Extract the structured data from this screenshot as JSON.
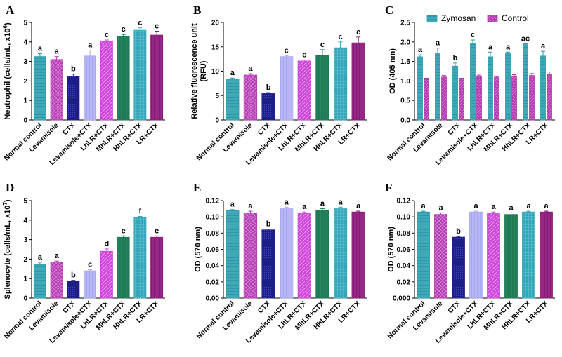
{
  "colors": {
    "normal": "#2a9aab",
    "levamisole": "#b03aae",
    "ctx": "#1d1f86",
    "levctx": "#a8a8f0",
    "lhlr": "#cc44d8",
    "mhlr": "#1f7a55",
    "hhlr": "#33a6b9",
    "lr": "#881a77",
    "zymosan": "#2a9aab",
    "control": "#b03aae"
  },
  "chart_data": [
    {
      "id": "A",
      "type": "bar",
      "letter": "A",
      "categories": [
        "Normal control",
        "Levamisole",
        "CTX",
        "Levamisole+CTX",
        "LhLR+CTX",
        "MhLR+CTX",
        "HhLR+CTX",
        "LR+CTX"
      ],
      "values": [
        3.25,
        3.1,
        2.25,
        3.28,
        4.02,
        4.28,
        4.6,
        4.35
      ],
      "errors": [
        0.15,
        0.15,
        0.1,
        0.3,
        0.08,
        0.1,
        0.12,
        0.2
      ],
      "labels": [
        "a",
        "a",
        "b",
        "a",
        "c",
        "c",
        "c",
        "c"
      ],
      "ylabel_prefix": "Neutrophil (cells/mL, x10",
      "ylabel_exp": "6",
      "ylabel_suffix": ")",
      "ylim": [
        0,
        5
      ],
      "yticks": [
        0,
        1,
        2,
        3,
        4,
        5
      ],
      "yticklabels": [
        "0",
        "1",
        "2",
        "3",
        "4",
        "5"
      ]
    },
    {
      "id": "B",
      "type": "bar",
      "letter": "B",
      "categories": [
        "Normal control",
        "Levamisole",
        "CTX",
        "Levamisole+CTX",
        "LhLR+CTX",
        "MhLR+CTX",
        "HhLR+CTX",
        "LR+CTX"
      ],
      "values": [
        8.3,
        9.2,
        5.4,
        13.0,
        12.1,
        13.2,
        14.8,
        15.8
      ],
      "errors": [
        0.3,
        0.3,
        0.2,
        0.2,
        0.2,
        1.2,
        1.2,
        1.2
      ],
      "labels": [
        "a",
        "a",
        "b",
        "c",
        "c",
        "c",
        "c",
        "c"
      ],
      "ylabel_line1": "Relative fluorescence unit",
      "ylabel_line2": "(RFU)",
      "ylim": [
        0,
        20
      ],
      "yticks": [
        0,
        5,
        10,
        15,
        20
      ],
      "yticklabels": [
        "0",
        "5",
        "10",
        "15",
        "20"
      ]
    },
    {
      "id": "C",
      "type": "grouped_bar",
      "letter": "C",
      "categories": [
        "Normal control",
        "Levamisole",
        "CTX",
        "Levamisole+CTX",
        "LhLR+CTX",
        "MhLR+CTX",
        "HhLR+CTX",
        "LR+CTX"
      ],
      "series": [
        {
          "name": "Zymosan",
          "values": [
            1.62,
            1.72,
            1.38,
            1.97,
            1.62,
            1.72,
            1.93,
            1.64
          ],
          "errors": [
            0.05,
            0.12,
            0.08,
            0.08,
            0.12,
            0.02,
            0.02,
            0.12
          ]
        },
        {
          "name": "Control",
          "values": [
            1.05,
            1.1,
            1.05,
            1.12,
            1.1,
            1.13,
            1.14,
            1.17
          ],
          "errors": [
            0.02,
            0.04,
            0.02,
            0.03,
            0.02,
            0.03,
            0.05,
            0.06
          ]
        }
      ],
      "labels": [
        "a",
        "a",
        "b",
        "c",
        "a",
        "a",
        "ac",
        "a"
      ],
      "ylabel": "OD (405 nm)",
      "ylim": [
        0,
        2.5
      ],
      "yticks": [
        0,
        0.5,
        1.0,
        1.5,
        2.0,
        2.5
      ],
      "yticklabels": [
        "0.0",
        "0.5",
        "1.0",
        "1.5",
        "2.0",
        "2.5"
      ],
      "legend": [
        "Zymosan",
        "Control"
      ]
    },
    {
      "id": "D",
      "type": "bar",
      "letter": "D",
      "categories": [
        "Normal control",
        "Levamisole",
        "CTX",
        "Levamisole+CTX",
        "LhLR+CTX",
        "MhLR+CTX",
        "HhLR+CTX",
        "LR+CTX"
      ],
      "values": [
        1.72,
        1.85,
        0.88,
        1.4,
        2.4,
        3.12,
        4.15,
        3.12
      ],
      "errors": [
        0.12,
        0.05,
        0.03,
        0.05,
        0.12,
        0.07,
        0.04,
        0.07
      ],
      "labels": [
        "a",
        "a",
        "b",
        "c",
        "d",
        "e",
        "f",
        "e"
      ],
      "ylabel_prefix": "Splenocyte (cells/mL, x10",
      "ylabel_exp": "7",
      "ylabel_suffix": ")",
      "ylim": [
        0,
        5
      ],
      "yticks": [
        0,
        1,
        2,
        3,
        4,
        5
      ],
      "yticklabels": [
        "0",
        "1",
        "2",
        "3",
        "4",
        "5"
      ]
    },
    {
      "id": "E",
      "type": "bar",
      "letter": "E",
      "categories": [
        "Normal control",
        "Levamisole",
        "CTX",
        "Levamisole+CTX",
        "LhLR+CTX",
        "MhLR+CTX",
        "HhLR+CTX",
        "LR+CTX"
      ],
      "values": [
        0.108,
        0.105,
        0.084,
        0.11,
        0.104,
        0.108,
        0.11,
        0.106
      ],
      "errors": [
        0.001,
        0.002,
        0.001,
        0.002,
        0.002,
        0.002,
        0.002,
        0.001
      ],
      "labels": [
        "a",
        "a",
        "b",
        "a",
        "a",
        "a",
        "a",
        "a"
      ],
      "ylabel": "OD (570 nm)",
      "ylim": [
        0,
        0.12
      ],
      "yticks": [
        0,
        0.02,
        0.04,
        0.06,
        0.08,
        0.1,
        0.12
      ],
      "yticklabels": [
        "0.00",
        "0.02",
        "0.04",
        "0.06",
        "0.08",
        "0.10",
        "0.12"
      ]
    },
    {
      "id": "F",
      "type": "bar",
      "letter": "F",
      "categories": [
        "Normal control",
        "Levamisole",
        "CTX",
        "Levamisole+CTX",
        "LhLR+CTX",
        "MhLR+CTX",
        "HhLR+CTX",
        "LR+CTX"
      ],
      "values": [
        0.106,
        0.103,
        0.075,
        0.106,
        0.104,
        0.103,
        0.106,
        0.106
      ],
      "errors": [
        0.001,
        0.002,
        0.001,
        0.001,
        0.002,
        0.002,
        0.001,
        0.001
      ],
      "labels": [
        "a",
        "a",
        "b",
        "a",
        "a",
        "a",
        "a",
        "a"
      ],
      "ylabel": "OD (570 nm)",
      "ylim": [
        0,
        0.12
      ],
      "yticks": [
        0,
        0.02,
        0.04,
        0.06,
        0.08,
        0.1,
        0.12
      ],
      "yticklabels": [
        "0.000",
        "0.02",
        "0.04",
        "0.06",
        "0.08",
        "0.10",
        "0.12"
      ]
    }
  ]
}
